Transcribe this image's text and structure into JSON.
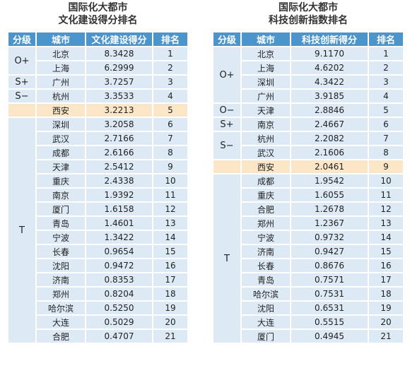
{
  "tables": [
    {
      "title": [
        "国际化大都市",
        "文化建设得分排名"
      ],
      "headers": [
        "分级",
        "城市",
        "文化建设得分",
        "排名"
      ],
      "groups": [
        {
          "grade": "O+",
          "rows": [
            [
              "北京",
              "8.3428",
              1
            ],
            [
              "上海",
              "6.2999",
              2
            ]
          ]
        },
        {
          "grade": "S+",
          "rows": [
            [
              "广州",
              "3.7257",
              3
            ]
          ]
        },
        {
          "grade": "S−",
          "rows": [
            [
              "杭州",
              "3.3533",
              4
            ]
          ]
        },
        {
          "grade": null,
          "rows": [
            [
              "西安",
              "3.2213",
              5
            ]
          ]
        },
        {
          "grade": "T",
          "rows": [
            [
              "深圳",
              "3.2058",
              6
            ],
            [
              "武汉",
              "2.7166",
              7
            ],
            [
              "成都",
              "2.6166",
              8
            ],
            [
              "天津",
              "2.5412",
              9
            ],
            [
              "重庆",
              "2.4338",
              10
            ],
            [
              "南京",
              "1.9392",
              11
            ],
            [
              "厦门",
              "1.6158",
              12
            ],
            [
              "青岛",
              "1.4601",
              13
            ],
            [
              "宁波",
              "1.3422",
              14
            ],
            [
              "长春",
              "0.9654",
              15
            ],
            [
              "沈阳",
              "0.9472",
              16
            ],
            [
              "济南",
              "0.8353",
              17
            ],
            [
              "郑州",
              "0.8204",
              18
            ],
            [
              "哈尔滨",
              "0.5250",
              19
            ],
            [
              "大连",
              "0.5029",
              20
            ],
            [
              "合肥",
              "0.4707",
              21
            ]
          ]
        }
      ]
    },
    {
      "title": [
        "国际化大都市",
        "科技创新指数排名"
      ],
      "headers": [
        "分级",
        "城市",
        "科技创新得分",
        "排名"
      ],
      "groups": [
        {
          "grade": "O+",
          "rows": [
            [
              "北京",
              "9.1170",
              1
            ],
            [
              "上海",
              "4.6202",
              2
            ],
            [
              "深圳",
              "4.3422",
              3
            ],
            [
              "广州",
              "3.9185",
              4
            ]
          ]
        },
        {
          "grade": "O−",
          "rows": [
            [
              "天津",
              "2.8846",
              5
            ]
          ]
        },
        {
          "grade": "S+",
          "rows": [
            [
              "南京",
              "2.4667",
              6
            ]
          ]
        },
        {
          "grade": "S−",
          "rows": [
            [
              "杭州",
              "2.2082",
              7
            ],
            [
              "武汉",
              "2.1606",
              8
            ]
          ]
        },
        {
          "grade": null,
          "rows": [
            [
              "西安",
              "2.0461",
              9
            ]
          ]
        },
        {
          "grade": "T",
          "rows": [
            [
              "成都",
              "1.9542",
              10
            ],
            [
              "重庆",
              "1.6055",
              11
            ],
            [
              "合肥",
              "1.2678",
              12
            ],
            [
              "郑州",
              "1.2367",
              13
            ],
            [
              "宁波",
              "0.9732",
              14
            ],
            [
              "济南",
              "0.9427",
              15
            ],
            [
              "长春",
              "0.8676",
              16
            ],
            [
              "青岛",
              "0.7571",
              17
            ],
            [
              "哈尔滨",
              "0.7531",
              18
            ],
            [
              "沈阳",
              "0.6531",
              19
            ],
            [
              "大连",
              "0.5515",
              20
            ],
            [
              "厦门",
              "0.4945",
              21
            ]
          ]
        }
      ]
    }
  ]
}
